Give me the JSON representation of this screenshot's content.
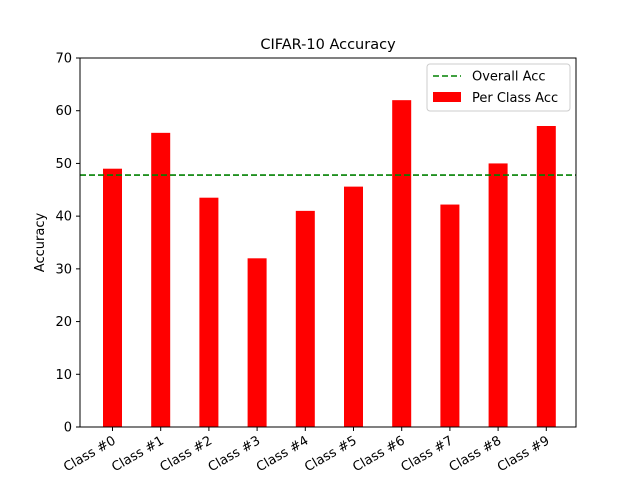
{
  "chart_data": {
    "type": "bar",
    "title": "CIFAR-10 Accuracy",
    "xlabel": "",
    "ylabel": "Accuracy",
    "ylim": [
      0,
      70
    ],
    "yticks": [
      "0",
      "10",
      "20",
      "30",
      "40",
      "50",
      "60",
      "70"
    ],
    "categories": [
      "Class #0",
      "Class #1",
      "Class #2",
      "Class #3",
      "Class #4",
      "Class #5",
      "Class #6",
      "Class #7",
      "Class #8",
      "Class #9"
    ],
    "series": [
      {
        "name": "Per Class Acc",
        "color": "#ff0000",
        "values": [
          49.0,
          55.8,
          43.5,
          32.0,
          41.0,
          45.6,
          62.0,
          42.2,
          50.0,
          57.1
        ]
      }
    ],
    "reference_line": {
      "name": "Overall Acc",
      "value": 47.8,
      "color": "#008000",
      "style": "dashed"
    },
    "legend_position": "top-right",
    "grid": false
  }
}
